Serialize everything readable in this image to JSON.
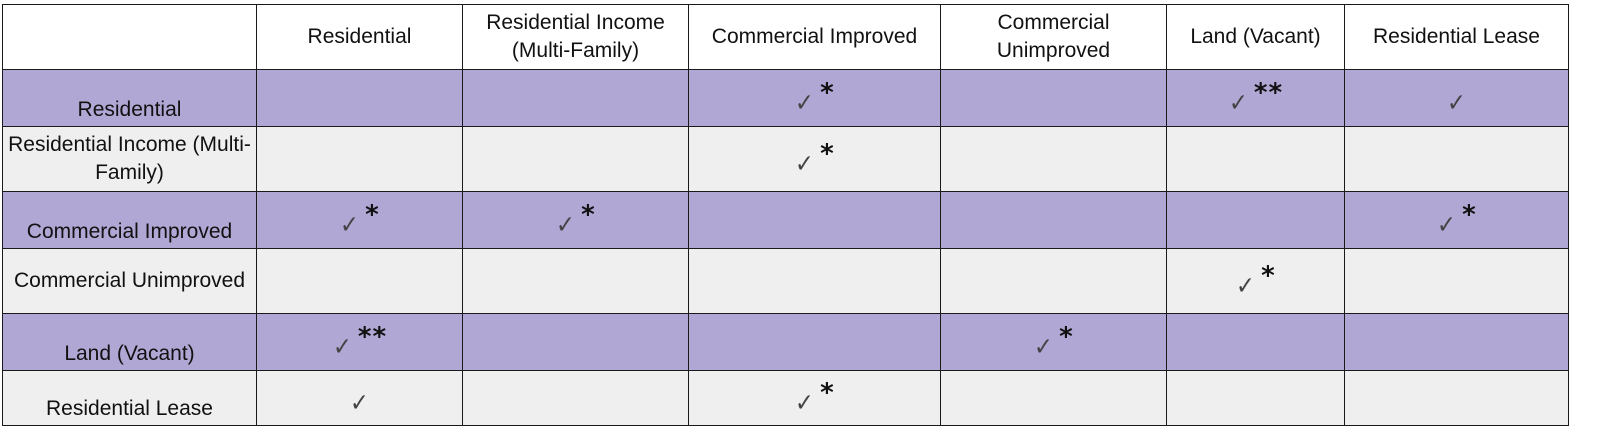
{
  "table": {
    "columns": [
      "",
      "Residential",
      "Residential Income (Multi-Family)",
      "Commercial Improved",
      "Commercial Unimproved",
      "Land (Vacant)",
      "Residential Lease"
    ],
    "check_symbol": "✓",
    "check_icon": "checkmark-icon",
    "rows": [
      {
        "label": "Residential",
        "band": "lavender",
        "cells": [
          {
            "check": false,
            "note": ""
          },
          {
            "check": false,
            "note": ""
          },
          {
            "check": true,
            "note": "*"
          },
          {
            "check": false,
            "note": ""
          },
          {
            "check": true,
            "note": "**"
          },
          {
            "check": true,
            "note": ""
          }
        ]
      },
      {
        "label": "Residential Income (Multi-Family)",
        "band": "grey",
        "cells": [
          {
            "check": false,
            "note": ""
          },
          {
            "check": false,
            "note": ""
          },
          {
            "check": true,
            "note": "*"
          },
          {
            "check": false,
            "note": ""
          },
          {
            "check": false,
            "note": ""
          },
          {
            "check": false,
            "note": ""
          }
        ]
      },
      {
        "label": "Commercial Improved",
        "band": "lavender",
        "cells": [
          {
            "check": true,
            "note": "*"
          },
          {
            "check": true,
            "note": "*"
          },
          {
            "check": false,
            "note": ""
          },
          {
            "check": false,
            "note": ""
          },
          {
            "check": false,
            "note": ""
          },
          {
            "check": true,
            "note": "*"
          }
        ]
      },
      {
        "label": "Commercial Unimproved",
        "band": "grey",
        "cells": [
          {
            "check": false,
            "note": ""
          },
          {
            "check": false,
            "note": ""
          },
          {
            "check": false,
            "note": ""
          },
          {
            "check": false,
            "note": ""
          },
          {
            "check": true,
            "note": "*"
          },
          {
            "check": false,
            "note": ""
          }
        ]
      },
      {
        "label": "Land (Vacant)",
        "band": "lavender",
        "cells": [
          {
            "check": true,
            "note": "**"
          },
          {
            "check": false,
            "note": ""
          },
          {
            "check": false,
            "note": ""
          },
          {
            "check": true,
            "note": "*"
          },
          {
            "check": false,
            "note": ""
          },
          {
            "check": false,
            "note": ""
          }
        ]
      },
      {
        "label": "Residential Lease",
        "band": "grey",
        "cells": [
          {
            "check": true,
            "note": ""
          },
          {
            "check": false,
            "note": ""
          },
          {
            "check": true,
            "note": "*"
          },
          {
            "check": false,
            "note": ""
          },
          {
            "check": false,
            "note": ""
          },
          {
            "check": false,
            "note": ""
          }
        ]
      }
    ]
  },
  "colors": {
    "band_lavender": "#b1a7d4",
    "band_grey": "#efefef",
    "border": "#1a1a1a",
    "check": "#444444"
  }
}
